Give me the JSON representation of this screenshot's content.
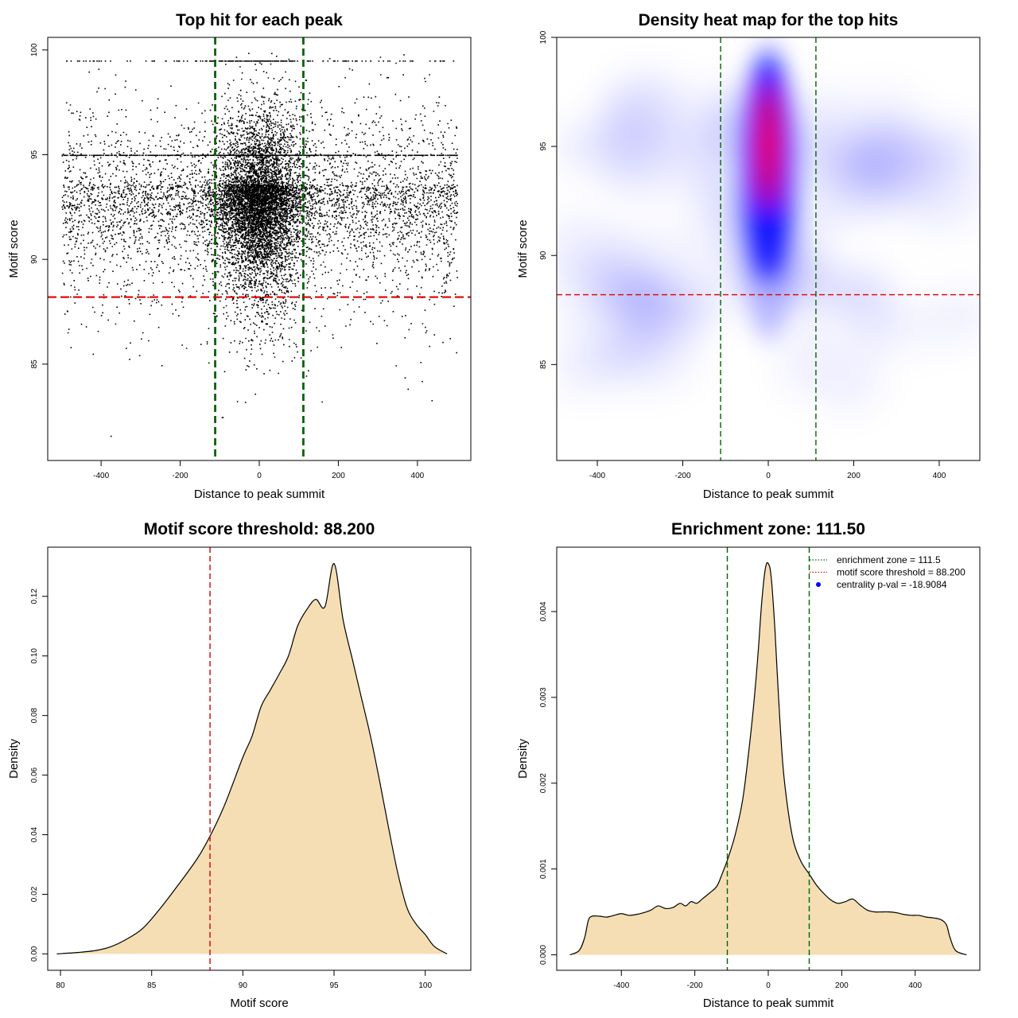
{
  "chart_data": [
    {
      "type": "scatter",
      "title": "Top hit for each peak",
      "xlabel": "Distance to peak summit",
      "ylabel": "Motif score",
      "xlim": [
        -535,
        535
      ],
      "ylim": [
        80.4,
        100.6
      ],
      "xticks": [
        -400,
        -200,
        0,
        200,
        400
      ],
      "yticks": [
        85,
        90,
        95,
        100
      ],
      "xtick_labels": [
        "-400",
        "-200",
        "0",
        "200",
        "400"
      ],
      "ytick_labels": [
        "85",
        "90",
        "95",
        "100"
      ],
      "vlines": [
        -111.5,
        111.5
      ],
      "hline": 88.2,
      "vline_color": "#006400",
      "hline_color": "#dd0000",
      "point_color": "#000000",
      "points": {
        "approx_count": 12000,
        "x_range": [
          -500,
          500
        ],
        "y_range": [
          81,
          100
        ],
        "central_mode_x": 0,
        "dense_score_band": 95,
        "dense_score_band_2": 99.5
      }
    },
    {
      "type": "heatmap",
      "title": "Density heat map for the top hits",
      "xlabel": "Distance to peak summit",
      "ylabel": "Motif score",
      "xlim": [
        -495,
        495
      ],
      "ylim": [
        80.6,
        100
      ],
      "xticks": [
        -400,
        -200,
        0,
        200,
        400
      ],
      "yticks": [
        85,
        90,
        95,
        100
      ],
      "xtick_labels": [
        "-400",
        "-200",
        "0",
        "200",
        "400"
      ],
      "ytick_labels": [
        "85",
        "90",
        "95",
        "100"
      ],
      "vlines": [
        -111.5,
        111.5
      ],
      "hline": 88.2,
      "vline_color": "#006400",
      "hline_color": "#dd0000",
      "colors": [
        "#ffffff",
        "#0000ff",
        "#ff0000"
      ],
      "hotspot": {
        "x": 0,
        "y": 95
      }
    },
    {
      "type": "area",
      "title": "Motif score threshold: 88.200",
      "xlabel": "Motif score",
      "ylabel": "Density",
      "xlim": [
        79.3,
        102.5
      ],
      "ylim": [
        -0.0055,
        0.1365
      ],
      "xticks": [
        80,
        85,
        90,
        95,
        100
      ],
      "yticks": [
        0,
        0.02,
        0.04,
        0.06,
        0.08,
        0.1,
        0.12
      ],
      "xtick_labels": [
        "80",
        "85",
        "90",
        "95",
        "100"
      ],
      "ytick_labels": [
        "0.00",
        "0.02",
        "0.04",
        "0.06",
        "0.08",
        "0.10",
        "0.12"
      ],
      "vlines": [
        88.2
      ],
      "vline_color": "#dd0000",
      "fill_color": "#f5deb3",
      "x": [
        79.8,
        81,
        82,
        82.8,
        83.5,
        84.5,
        85.5,
        86.5,
        87.5,
        88.2,
        89,
        90,
        90.5,
        91,
        91.5,
        92,
        92.5,
        93,
        93.5,
        94,
        94.5,
        95,
        95.5,
        96,
        96.5,
        97,
        97.5,
        98,
        98.5,
        99,
        99.5,
        100,
        100.5,
        101.2
      ],
      "y": [
        0,
        0.0005,
        0.0012,
        0.0025,
        0.0045,
        0.0085,
        0.0155,
        0.0235,
        0.032,
        0.0395,
        0.05,
        0.066,
        0.073,
        0.083,
        0.0885,
        0.094,
        0.1,
        0.11,
        0.1155,
        0.119,
        0.1165,
        0.131,
        0.112,
        0.099,
        0.086,
        0.073,
        0.058,
        0.042,
        0.027,
        0.0155,
        0.01,
        0.0065,
        0.0025,
        0
      ]
    },
    {
      "type": "area",
      "title": "Enrichment zone: 111.50",
      "xlabel": "Distance to peak summit",
      "ylabel": "Density",
      "xlim": [
        -576,
        576
      ],
      "ylim": [
        -0.00018,
        0.00475
      ],
      "xticks": [
        -400,
        -200,
        0,
        200,
        400
      ],
      "yticks": [
        0,
        0.001,
        0.002,
        0.003,
        0.004
      ],
      "xtick_labels": [
        "-400",
        "-200",
        "0",
        "200",
        "400"
      ],
      "ytick_labels": [
        "0.000",
        "0.001",
        "0.002",
        "0.003",
        "0.004"
      ],
      "vlines": [
        -111.5,
        111.5
      ],
      "vline_color": "#006400",
      "fill_color": "#f5deb3",
      "x": [
        -540,
        -515,
        -500,
        -490,
        -480,
        -460,
        -440,
        -420,
        -400,
        -380,
        -360,
        -340,
        -320,
        -300,
        -280,
        -260,
        -240,
        -225,
        -210,
        -195,
        -180,
        -160,
        -140,
        -125,
        -110,
        -90,
        -70,
        -55,
        -40,
        -28,
        -18,
        -8,
        0,
        8,
        18,
        28,
        40,
        55,
        70,
        90,
        110,
        130,
        150,
        170,
        190,
        210,
        230,
        250,
        270,
        290,
        310,
        330,
        350,
        370,
        390,
        410,
        430,
        450,
        470,
        485,
        495,
        510,
        540
      ],
      "y": [
        0,
        5e-05,
        0.0002,
        0.0004,
        0.00045,
        0.00045,
        0.00044,
        0.00046,
        0.00048,
        0.00046,
        0.00047,
        0.00049,
        0.00052,
        0.00057,
        0.00054,
        0.00055,
        0.0006,
        0.00057,
        0.00062,
        0.0006,
        0.00065,
        0.00072,
        0.0008,
        0.00095,
        0.00112,
        0.0014,
        0.0018,
        0.0023,
        0.0029,
        0.0035,
        0.0041,
        0.0045,
        0.00456,
        0.0044,
        0.0038,
        0.003,
        0.0022,
        0.00165,
        0.0013,
        0.00108,
        0.00095,
        0.00082,
        0.00072,
        0.00064,
        0.0006,
        0.00062,
        0.00065,
        0.00058,
        0.00052,
        0.0005,
        0.0005,
        0.0005,
        0.00049,
        0.00047,
        0.00046,
        0.00046,
        0.00044,
        0.00043,
        0.00041,
        0.00035,
        0.0002,
        5e-05,
        0
      ],
      "legend": [
        {
          "label": "enrichment zone = 111.5",
          "style": "dotted-line",
          "color": "#006400"
        },
        {
          "label": "motif score threshold = 88.200",
          "style": "dotted-line",
          "color": "#dd0000"
        },
        {
          "label": "centrality p-val = -18.9084",
          "style": "point",
          "color": "#0000ff"
        }
      ],
      "legend_position": "top-right"
    }
  ]
}
